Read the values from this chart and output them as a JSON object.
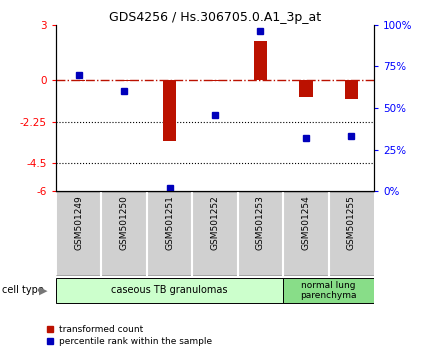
{
  "title": "GDS4256 / Hs.306705.0.A1_3p_at",
  "samples": [
    "GSM501249",
    "GSM501250",
    "GSM501251",
    "GSM501252",
    "GSM501253",
    "GSM501254",
    "GSM501255"
  ],
  "transformed_count": [
    -0.05,
    -0.05,
    -3.3,
    -0.05,
    2.1,
    -0.9,
    -1.0
  ],
  "percentile_rank": [
    70,
    60,
    2,
    46,
    96,
    32,
    33
  ],
  "ylim_left": [
    -6,
    3
  ],
  "ylim_right": [
    0,
    100
  ],
  "yticks_left": [
    -6,
    -4.5,
    -2.25,
    0,
    3
  ],
  "ytick_labels_left": [
    "-6",
    "-4.5",
    "-2.25",
    "0",
    "3"
  ],
  "yticks_right": [
    0,
    25,
    50,
    75,
    100
  ],
  "ytick_labels_right": [
    "0%",
    "25%",
    "50%",
    "75%",
    "100%"
  ],
  "hlines": [
    -2.25,
    -4.5
  ],
  "bar_color": "#BB1100",
  "dot_color": "#0000BB",
  "group1_color": "#CCFFCC",
  "group2_color": "#88DD88",
  "group1_label": "caseous TB granulomas",
  "group2_label": "normal lung\nparenchyma",
  "legend_bar_label": "transformed count",
  "legend_dot_label": "percentile rank within the sample",
  "cell_type_label": "cell type",
  "xtick_bg": "#D0D0D0"
}
